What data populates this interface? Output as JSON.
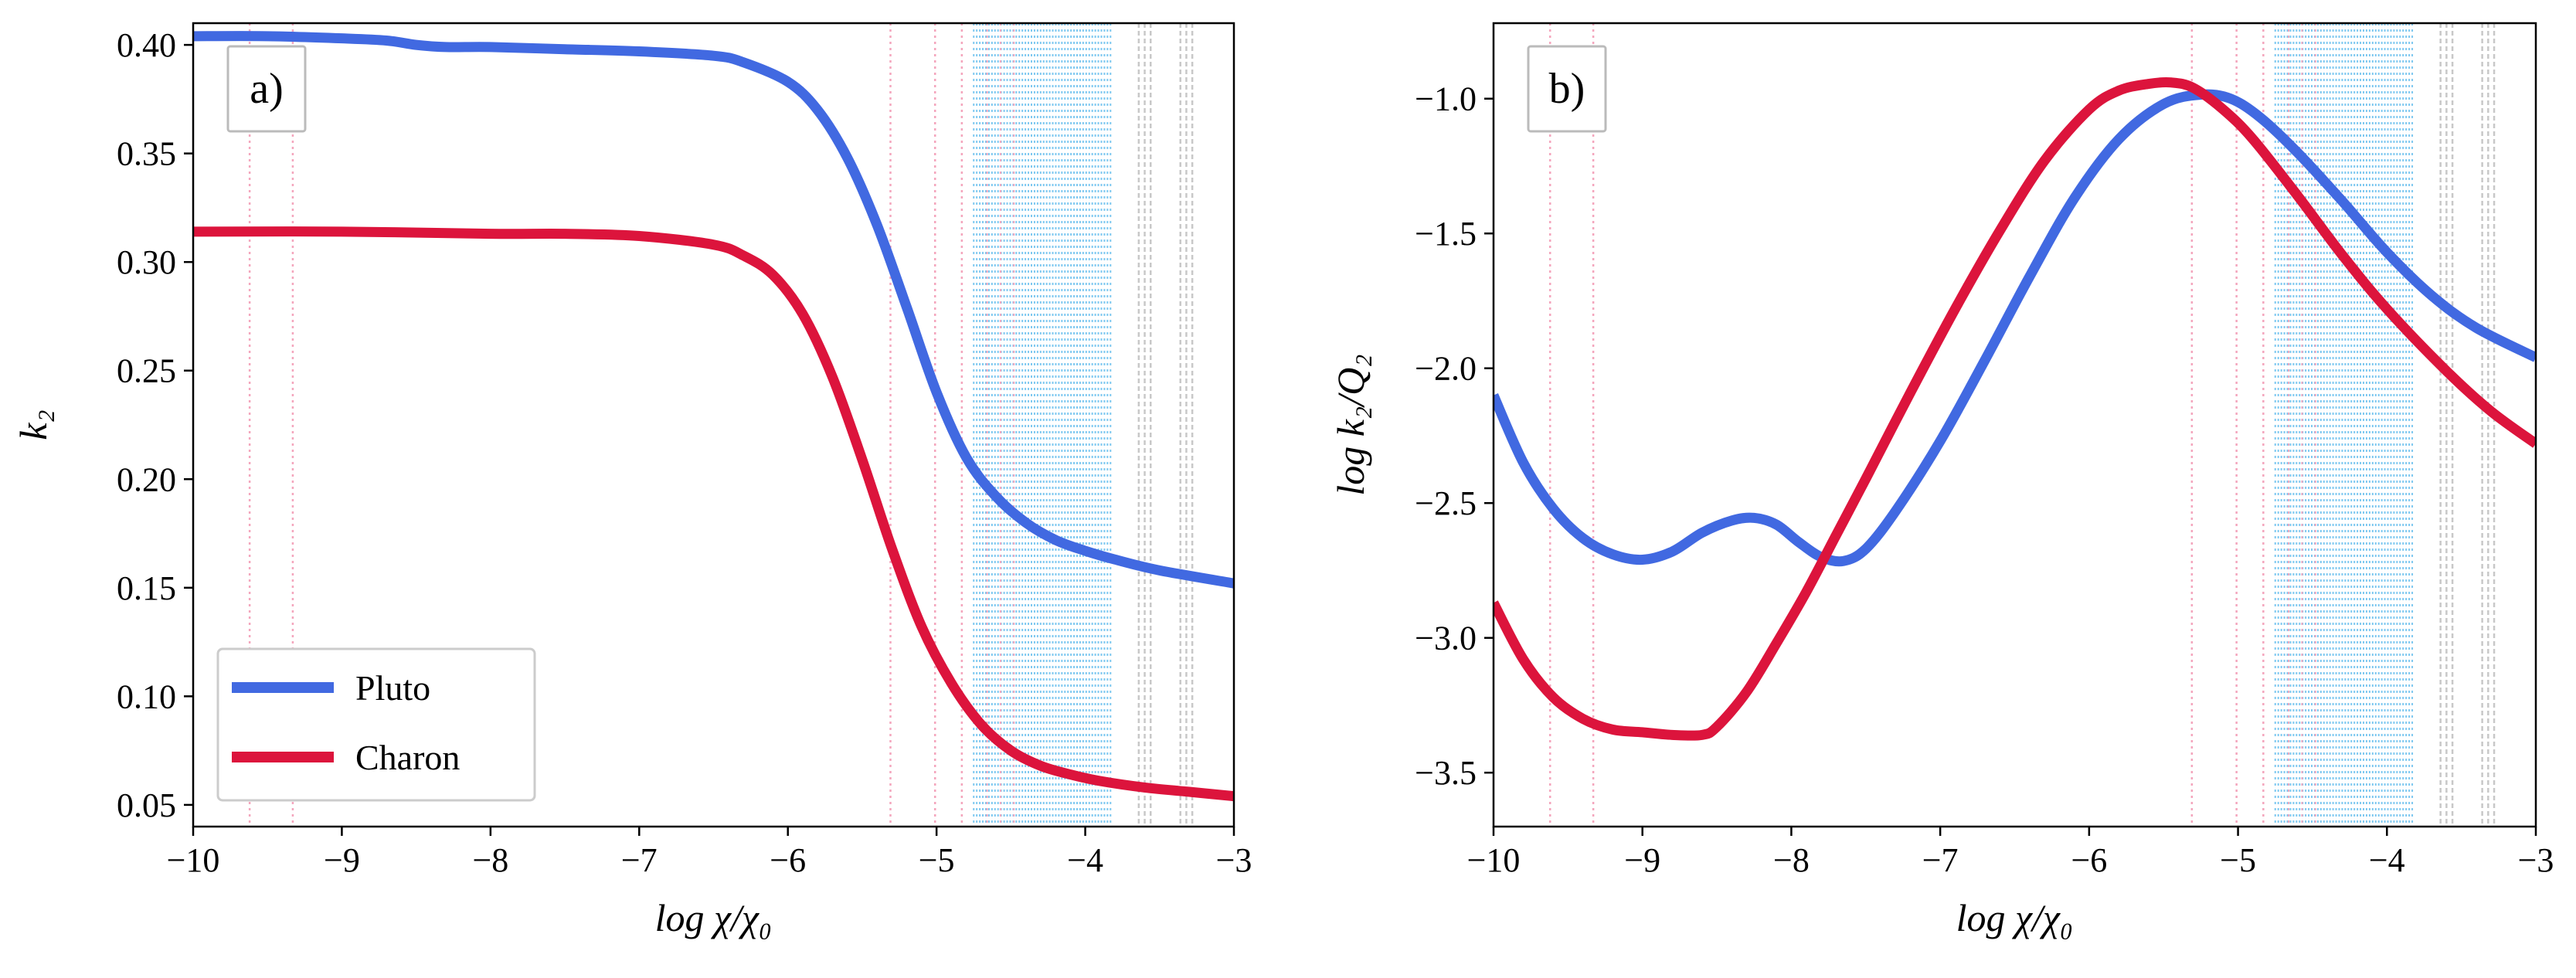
{
  "chart_data": [
    {
      "type": "line",
      "panel_label": "a)",
      "xlabel": "log χ/χ₀",
      "ylabel": "k₂",
      "xlim": [
        -10,
        -3
      ],
      "ylim": [
        0.04,
        0.41
      ],
      "xticks": [
        "−10",
        "−9",
        "−8",
        "−7",
        "−6",
        "−5",
        "−4",
        "−3"
      ],
      "xtick_values": [
        -10,
        -9,
        -8,
        -7,
        -6,
        -5,
        -4,
        -3
      ],
      "yticks": [
        "0.05",
        "0.10",
        "0.15",
        "0.20",
        "0.25",
        "0.30",
        "0.35",
        "0.40"
      ],
      "ytick_values": [
        0.05,
        0.1,
        0.15,
        0.2,
        0.25,
        0.3,
        0.35,
        0.4
      ],
      "legend": {
        "placement": "lower-left",
        "entries": [
          "Pluto",
          "Charon"
        ]
      },
      "series": [
        {
          "name": "Pluto",
          "color": "#4169E1",
          "x": [
            -10,
            -9.5,
            -9,
            -8.7,
            -8.5,
            -8.3,
            -8,
            -7.5,
            -7,
            -6.5,
            -6.3,
            -6.0,
            -5.8,
            -5.6,
            -5.4,
            -5.2,
            -5.0,
            -4.8,
            -4.6,
            -4.4,
            -4.2,
            -4.0,
            -3.8,
            -3.5,
            -3.0
          ],
          "y": [
            0.404,
            0.404,
            0.403,
            0.402,
            0.4,
            0.399,
            0.399,
            0.398,
            0.397,
            0.395,
            0.392,
            0.383,
            0.37,
            0.348,
            0.317,
            0.279,
            0.24,
            0.21,
            0.192,
            0.18,
            0.172,
            0.167,
            0.163,
            0.158,
            0.152
          ]
        },
        {
          "name": "Charon",
          "color": "#DC143C",
          "x": [
            -10,
            -9,
            -8,
            -7.5,
            -7,
            -6.5,
            -6.3,
            -6.1,
            -5.9,
            -5.7,
            -5.5,
            -5.3,
            -5.1,
            -4.9,
            -4.7,
            -4.5,
            -4.3,
            -4.1,
            -3.9,
            -3.6,
            -3.3,
            -3.0
          ],
          "y": [
            0.314,
            0.314,
            0.313,
            0.313,
            0.312,
            0.308,
            0.303,
            0.294,
            0.276,
            0.247,
            0.209,
            0.168,
            0.132,
            0.106,
            0.087,
            0.075,
            0.068,
            0.064,
            0.061,
            0.058,
            0.056,
            0.054
          ]
        }
      ],
      "vlines_pink": [
        -9.62,
        -9.33,
        -5.31,
        -5.01,
        -4.83
      ],
      "vlines_blue_range": [
        -4.75,
        -3.83
      ],
      "vlines_gray": [
        -3.6,
        -3.32
      ]
    },
    {
      "type": "line",
      "panel_label": "b)",
      "xlabel": "log χ/χ₀",
      "ylabel": "log k₂/Q₂",
      "xlim": [
        -10,
        -3
      ],
      "ylim": [
        -3.7,
        -0.72
      ],
      "xticks": [
        "−10",
        "−9",
        "−8",
        "−7",
        "−6",
        "−5",
        "−4",
        "−3"
      ],
      "xtick_values": [
        -10,
        -9,
        -8,
        -7,
        -6,
        -5,
        -4,
        -3
      ],
      "yticks": [
        "−3.5",
        "−3.0",
        "−2.5",
        "−2.0",
        "−1.5",
        "−1.0"
      ],
      "ytick_values": [
        -3.5,
        -3.0,
        -2.5,
        -2.0,
        -1.5,
        -1.0
      ],
      "series": [
        {
          "name": "Pluto",
          "color": "#4169E1",
          "x": [
            -10,
            -9.8,
            -9.6,
            -9.4,
            -9.2,
            -9.0,
            -8.8,
            -8.6,
            -8.4,
            -8.25,
            -8.1,
            -7.95,
            -7.8,
            -7.65,
            -7.5,
            -7.3,
            -7.0,
            -6.7,
            -6.4,
            -6.1,
            -5.8,
            -5.5,
            -5.25,
            -5.05,
            -4.85,
            -4.6,
            -4.3,
            -4.0,
            -3.7,
            -3.4,
            -3.0
          ],
          "y": [
            -2.1,
            -2.35,
            -2.52,
            -2.63,
            -2.69,
            -2.71,
            -2.68,
            -2.61,
            -2.565,
            -2.555,
            -2.58,
            -2.645,
            -2.7,
            -2.715,
            -2.67,
            -2.53,
            -2.27,
            -1.97,
            -1.66,
            -1.37,
            -1.15,
            -1.02,
            -0.985,
            -1.0,
            -1.07,
            -1.2,
            -1.38,
            -1.57,
            -1.73,
            -1.85,
            -1.96
          ]
        },
        {
          "name": "Charon",
          "color": "#DC143C",
          "x": [
            -10,
            -9.8,
            -9.6,
            -9.4,
            -9.2,
            -9.0,
            -8.8,
            -8.6,
            -8.5,
            -8.3,
            -8.1,
            -7.9,
            -7.7,
            -7.5,
            -7.2,
            -6.9,
            -6.6,
            -6.3,
            -6.0,
            -5.8,
            -5.6,
            -5.45,
            -5.3,
            -5.1,
            -4.9,
            -4.6,
            -4.3,
            -4.0,
            -3.6,
            -3.3,
            -3.0
          ],
          "y": [
            -2.87,
            -3.08,
            -3.22,
            -3.3,
            -3.34,
            -3.35,
            -3.36,
            -3.36,
            -3.33,
            -3.2,
            -3.02,
            -2.83,
            -2.62,
            -2.41,
            -2.09,
            -1.78,
            -1.49,
            -1.23,
            -1.04,
            -0.97,
            -0.945,
            -0.94,
            -0.96,
            -1.04,
            -1.15,
            -1.36,
            -1.58,
            -1.78,
            -2.01,
            -2.16,
            -2.28
          ]
        }
      ],
      "vlines_pink": [
        -9.62,
        -9.33,
        -5.31,
        -5.01,
        -4.83
      ],
      "vlines_blue_range": [
        -4.75,
        -3.83
      ],
      "vlines_gray": [
        -3.6,
        -3.32
      ]
    }
  ]
}
